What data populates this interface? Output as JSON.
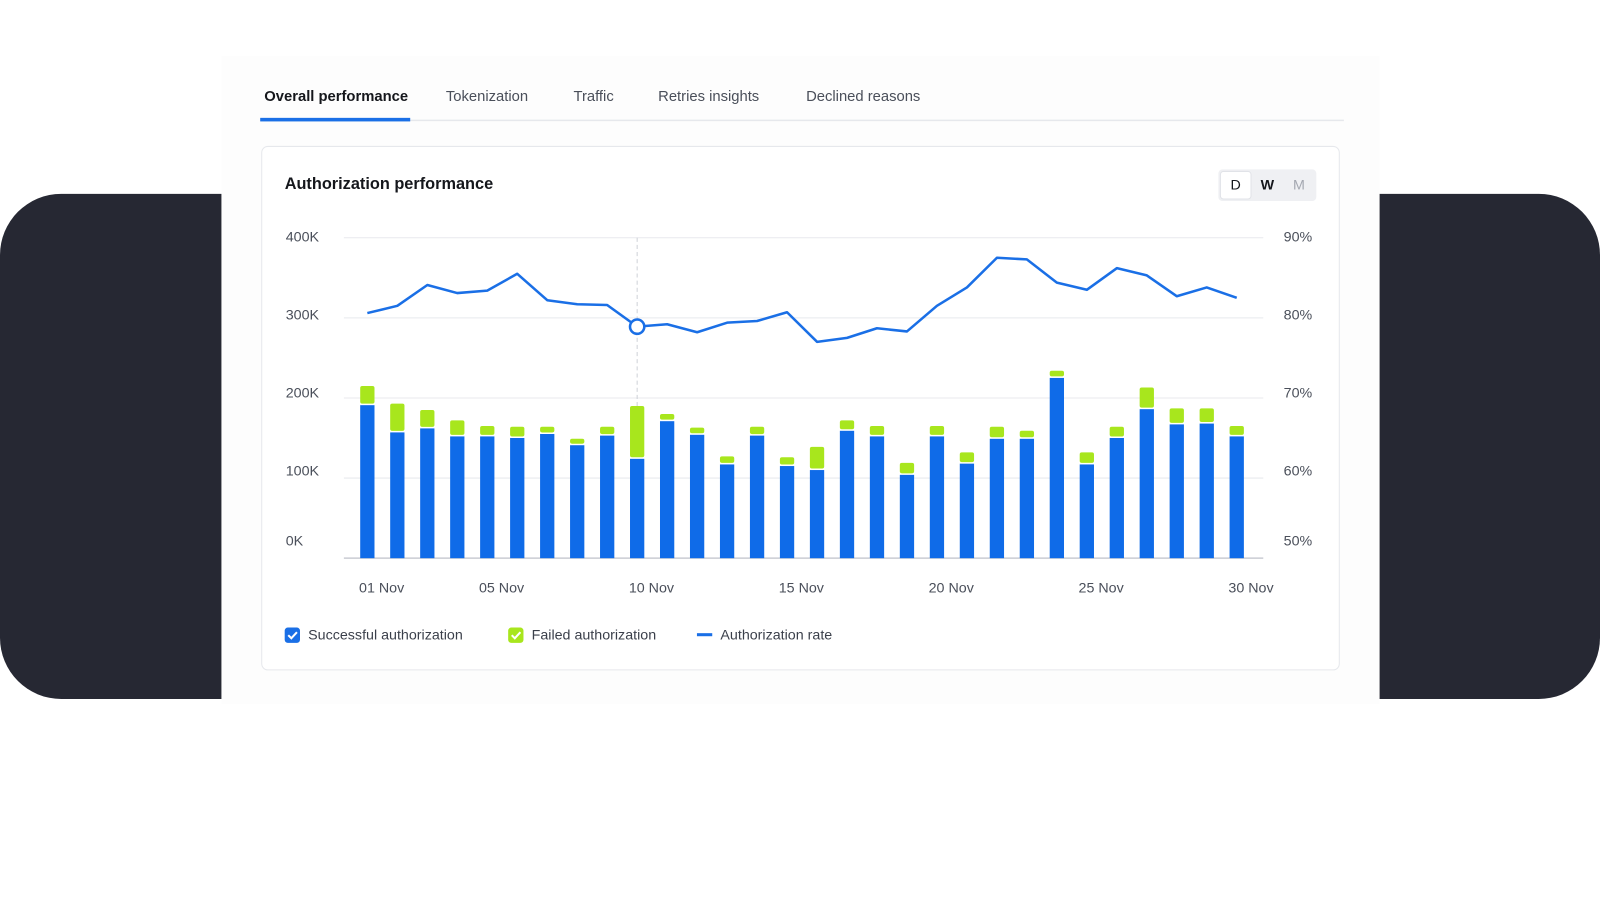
{
  "tabs": [
    "Overall performance",
    "Tokenization",
    "Traffic",
    "Retries insights",
    "Declined reasons"
  ],
  "card": {
    "title": "Authorization performance",
    "period_buttons": [
      "D",
      "W",
      "M"
    ]
  },
  "chart_data": {
    "type": "combo",
    "categories": [
      "01 Nov",
      null,
      null,
      null,
      "05 Nov",
      null,
      null,
      null,
      null,
      "10 Nov",
      null,
      null,
      null,
      null,
      "15 Nov",
      null,
      null,
      null,
      null,
      "20 Nov",
      null,
      null,
      null,
      null,
      "25 Nov",
      null,
      null,
      null,
      null,
      "30 Nov"
    ],
    "series": [
      {
        "name": "Successful authorization",
        "color": "#0f6be8",
        "values": [
          191000,
          157000,
          162000,
          152000,
          152000,
          150000,
          155000,
          141000,
          153000,
          124000,
          171000,
          154000,
          117000,
          153000,
          115000,
          110000,
          159000,
          152000,
          104000,
          152000,
          118000,
          149000,
          149000,
          225000,
          117000,
          150000,
          186000,
          167000,
          168000,
          152000
        ]
      },
      {
        "name": "Failed authorization",
        "color": "#a8e61d",
        "values": [
          24000,
          36000,
          23000,
          20000,
          13000,
          14000,
          9000,
          8000,
          11000,
          66000,
          9000,
          9000,
          10000,
          11000,
          11000,
          29000,
          13000,
          13000,
          15000,
          13000,
          14000,
          15000,
          10000,
          9000,
          15000,
          14000,
          27000,
          20000,
          19000,
          13000
        ]
      },
      {
        "name": "Authorization rate",
        "color": "#1a6fe6",
        "axis": "y2",
        "values": [
          80.6,
          81.5,
          84.1,
          83.1,
          83.4,
          85.5,
          82.2,
          81.7,
          81.6,
          78.9,
          79.2,
          78.2,
          79.4,
          79.6,
          80.7,
          77.0,
          77.5,
          78.7,
          78.3,
          81.5,
          83.8,
          87.5,
          87.3,
          84.4,
          83.5,
          86.2,
          85.3,
          82.7,
          83.8,
          82.5
        ]
      }
    ],
    "ylim": [
      0,
      400000
    ],
    "yticks": [
      {
        "value": 0,
        "label": "0K"
      },
      {
        "value": 100000,
        "label": "100K"
      },
      {
        "value": 200000,
        "label": "200K"
      },
      {
        "value": 300000,
        "label": "300K"
      },
      {
        "value": 400000,
        "label": "400K"
      }
    ],
    "y2lim": [
      50,
      90
    ],
    "y2ticks": [
      {
        "value": 50,
        "label": "50%"
      },
      {
        "value": 60,
        "label": "60%"
      },
      {
        "value": 70,
        "label": "70%"
      },
      {
        "value": 80,
        "label": "80%"
      },
      {
        "value": 90,
        "label": "90%"
      }
    ],
    "grid": true
  }
}
